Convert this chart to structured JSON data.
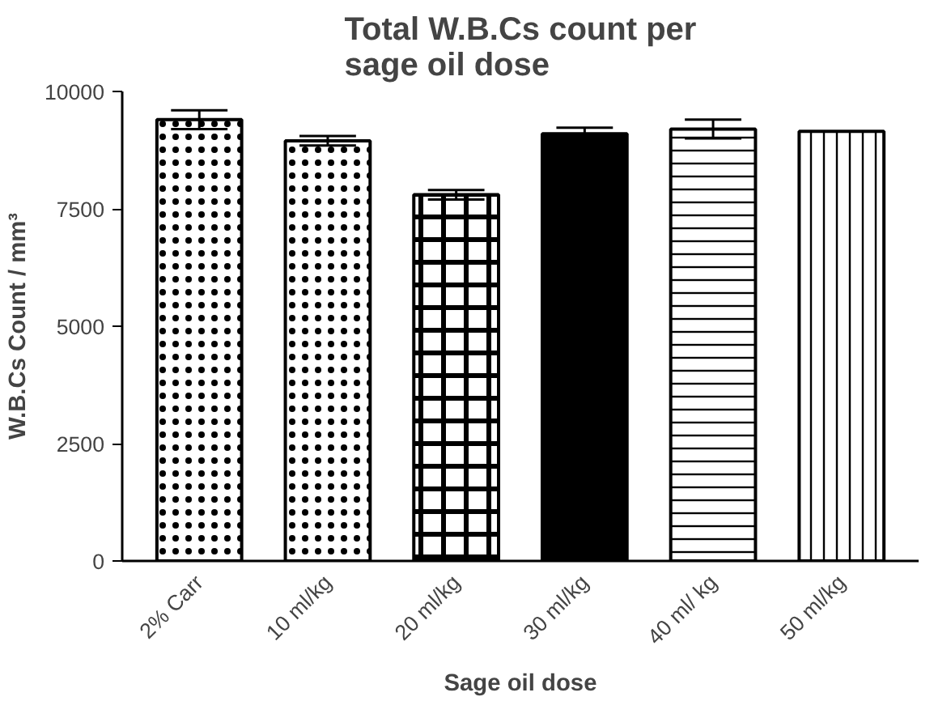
{
  "chart_data": {
    "type": "bar",
    "title": "Total W.B.Cs count per sage oil dose",
    "xlabel": "Sage oil dose",
    "ylabel": "W.B.Cs Count / mm³",
    "categories": [
      "2% Carr",
      "10 ml/kg",
      "20 ml/kg",
      "30 ml/kg",
      "40 ml/ kg",
      "50 ml/kg"
    ],
    "values": [
      9400,
      8950,
      7800,
      9100,
      9200,
      9150
    ],
    "errors": [
      200,
      100,
      100,
      130,
      200,
      null
    ],
    "colors": [
      "#ffffff",
      "#ffffff",
      "#ffffff",
      "#000000",
      "#ffffff",
      "#ffffff"
    ],
    "ylim": [
      0,
      10000
    ],
    "yticks": [
      0,
      2500,
      5000,
      7500,
      10000
    ],
    "grid": false
  }
}
